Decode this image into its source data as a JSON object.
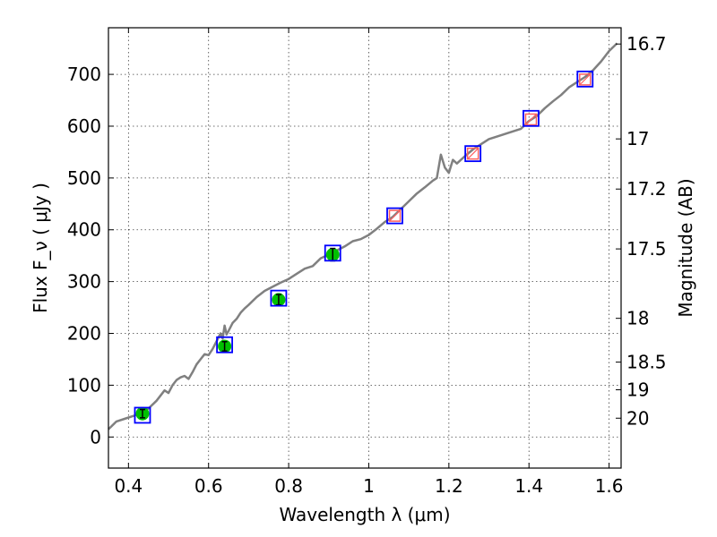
{
  "chart_data": {
    "type": "scatter",
    "title": "",
    "xlabel": "Wavelength  λ (μm)",
    "ylabel": "Flux  F_ν  ( μJy )",
    "ylabel_right": "Magnitude (AB)",
    "xlim": [
      0.35,
      1.63
    ],
    "ylim": [
      -60,
      790
    ],
    "grid": true,
    "xticks": [
      0.4,
      0.6,
      0.8,
      1.0,
      1.2,
      1.4,
      1.6
    ],
    "xtick_labels": [
      "0.4",
      "0.6",
      "0.8",
      "1",
      "1.2",
      "1.4",
      "1.6"
    ],
    "yticks": [
      0,
      100,
      200,
      300,
      400,
      500,
      600,
      700
    ],
    "ytick_labels": [
      "0",
      "100",
      "200",
      "300",
      "400",
      "500",
      "600",
      "700"
    ],
    "right_ticks": [
      16.7,
      17,
      17.2,
      17.5,
      18,
      18.5,
      19,
      20
    ],
    "right_tick_labels": [
      "16.7",
      "17",
      "17.2",
      "17.5",
      "18",
      "18.5",
      "19",
      "20"
    ],
    "colors": {
      "spectrum": "#808080",
      "model_box": "#0000ff",
      "photometry_fill": "#00c000",
      "nir_marker": "#ff6060",
      "errorbar": "#000000"
    },
    "series": [
      {
        "kind": "spectrum",
        "x": [
          0.35,
          0.37,
          0.39,
          0.41,
          0.43,
          0.45,
          0.47,
          0.49,
          0.5,
          0.51,
          0.52,
          0.53,
          0.54,
          0.55,
          0.56,
          0.57,
          0.58,
          0.59,
          0.6,
          0.61,
          0.62,
          0.63,
          0.635,
          0.64,
          0.645,
          0.65,
          0.66,
          0.67,
          0.68,
          0.69,
          0.7,
          0.72,
          0.74,
          0.76,
          0.78,
          0.8,
          0.82,
          0.84,
          0.86,
          0.88,
          0.9,
          0.92,
          0.94,
          0.96,
          0.98,
          1.0,
          1.02,
          1.04,
          1.06,
          1.08,
          1.1,
          1.12,
          1.14,
          1.16,
          1.17,
          1.18,
          1.19,
          1.2,
          1.21,
          1.22,
          1.24,
          1.26,
          1.28,
          1.3,
          1.32,
          1.34,
          1.36,
          1.38,
          1.4,
          1.42,
          1.44,
          1.46,
          1.48,
          1.5,
          1.52,
          1.54,
          1.56,
          1.58,
          1.6,
          1.62
        ],
        "y": [
          15,
          30,
          35,
          40,
          45,
          55,
          70,
          90,
          85,
          100,
          110,
          115,
          118,
          112,
          125,
          140,
          150,
          160,
          158,
          170,
          185,
          200,
          190,
          215,
          198,
          205,
          220,
          228,
          240,
          248,
          255,
          270,
          282,
          290,
          298,
          305,
          315,
          325,
          330,
          345,
          352,
          360,
          368,
          378,
          382,
          390,
          402,
          415,
          425,
          440,
          455,
          470,
          482,
          495,
          500,
          545,
          520,
          510,
          535,
          528,
          542,
          555,
          565,
          575,
          580,
          585,
          590,
          595,
          610,
          620,
          635,
          648,
          660,
          675,
          685,
          695,
          708,
          725,
          745,
          760
        ]
      },
      {
        "kind": "model",
        "x": [
          0.435,
          0.64,
          0.775,
          0.91,
          1.065,
          1.26,
          1.405,
          1.54
        ],
        "y": [
          42,
          178,
          268,
          355,
          427,
          547,
          615,
          691
        ]
      },
      {
        "kind": "photometry",
        "x": [
          0.435,
          0.64,
          0.775,
          0.91
        ],
        "y": [
          45,
          175,
          265,
          352
        ],
        "err": [
          8,
          9,
          10,
          12
        ]
      },
      {
        "kind": "nir-photometry",
        "x": [
          1.065,
          1.26,
          1.405,
          1.54
        ],
        "y": [
          427,
          547,
          613,
          690
        ]
      }
    ]
  }
}
